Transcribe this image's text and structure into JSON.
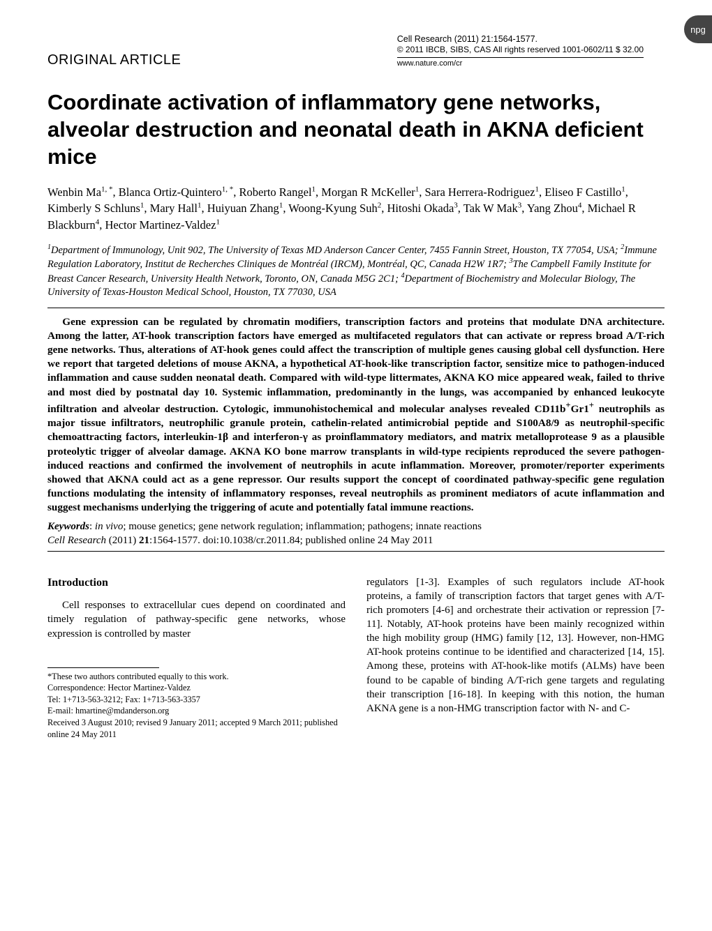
{
  "badge": "npg",
  "header": {
    "article_type": "ORIGINAL ARTICLE",
    "journal_line1": "Cell Research (2011) 21:1564-1577.",
    "journal_line2": "© 2011 IBCB, SIBS, CAS   All rights reserved 1001-0602/11  $ 32.00",
    "journal_url": "www.nature.com/cr"
  },
  "title": "Coordinate activation of inflammatory gene networks, alveolar destruction and neonatal death in AKNA deficient mice",
  "authors_html": "Wenbin Ma<sup>1, *</sup>, Blanca Ortiz-Quintero<sup>1, *</sup>, Roberto Rangel<sup>1</sup>, Morgan R McKeller<sup>1</sup>, Sara Herrera-Rodriguez<sup>1</sup>, Eliseo F Castillo<sup>1</sup>, Kimberly S Schluns<sup>1</sup>, Mary Hall<sup>1</sup>, Huiyuan Zhang<sup>1</sup>, Woong-Kyung Suh<sup>2</sup>, Hitoshi Okada<sup>3</sup>, Tak W Mak<sup>3</sup>, Yang Zhou<sup>4</sup>, Michael R Blackburn<sup>4</sup>, Hector Martinez-Valdez<sup>1</sup>",
  "affiliations_html": "<sup>1</sup>Department of Immunology, Unit 902, The University of Texas MD Anderson Cancer Center, 7455 Fannin Street, Houston, TX 77054, USA; <sup>2</sup>Immune Regulation Laboratory, Institut de Recherches Cliniques de Montréal (IRCM), Montréal, QC, Canada H2W 1R7; <sup>3</sup>The Campbell Family Institute for Breast Cancer Research, University Health Network, Toronto, ON, Canada M5G 2C1; <sup>4</sup>Department of Biochemistry and Molecular Biology, The University of Texas-Houston Medical School, Houston, TX 77030, USA",
  "abstract_html": "Gene expression can be regulated by chromatin modifiers, transcription factors and proteins that modulate DNA architecture. Among the latter, AT-hook transcription factors have emerged as multifaceted regulators that can activate or repress broad A/T-rich gene networks. Thus, alterations of AT-hook genes could affect the transcription of multiple genes causing global cell dysfunction. Here we report that targeted deletions of mouse AKNA, a hypothetical AT-hook-like transcription factor, sensitize mice to pathogen-induced inflammation and cause sudden neonatal death. Compared with wild-type littermates, AKNA KO mice appeared weak, failed to thrive and most died by postnatal day 10. Systemic inflammation, predominantly in the lungs, was accompanied by enhanced leukocyte infiltration and alveolar destruction. Cytologic, immunohistochemical and molecular analyses revealed CD11b<sup>+</sup>Gr1<sup>+</sup> neutrophils as major tissue infiltrators, neutrophilic granule protein, cathelin-related antimicrobial peptide and S100A8/9 as neutrophil-specific chemoattracting factors, interleukin-1β and interferon-γ as proinflammatory mediators, and matrix metalloprotease 9 as a plausible proteolytic trigger of alveolar damage. AKNA KO bone marrow transplants in wild-type recipients reproduced the severe pathogen-induced reactions and confirmed the involvement of neutrophils in acute inflammation. Moreover, promoter/reporter experiments showed that AKNA could act as a gene repressor. Our results support the concept of coordinated pathway-specific gene regulation functions modulating the intensity of inflammatory responses, reveal neutrophils as prominent mediators of acute inflammation and suggest mechanisms underlying the triggering of acute and potentially fatal immune reactions.",
  "keywords": {
    "label": "Keywords",
    "text": ": in vivo; mouse genetics; gene network regulation; inflammation; pathogens; innate reactions"
  },
  "citation_html": "<span class=\"journal\">Cell Research</span> (2011) <b>21</b>:1564-1577. doi:10.1038/cr.2011.84; published online 24 May 2011",
  "body": {
    "intro_heading": "Introduction",
    "left_para": "Cell responses to extracellular cues depend on coordinated and timely regulation of pathway-specific gene networks, whose expression is controlled by master",
    "right_para": "regulators [1-3]. Examples of such regulators include AT-hook proteins, a family of transcription factors that target genes with A/T-rich promoters [4-6] and orchestrate their activation or repression [7-11]. Notably, AT-hook proteins have been mainly recognized within the high mobility group (HMG) family [12, 13]. However, non-HMG AT-hook proteins continue to be identified and characterized [14, 15]. Among these, proteins with AT-hook-like motifs (ALMs) have been found to be capable of binding A/T-rich gene targets and regulating their transcription [16-18]. In keeping with this notion, the human AKNA gene is a non-HMG transcription factor with N- and C-"
  },
  "footnotes": {
    "equal": "*These two authors contributed equally to this work.",
    "correspondence": "Correspondence: Hector Martinez-Valdez",
    "tel": "Tel: 1+713-563-3212; Fax: 1+713-563-3357",
    "email": "E-mail: hmartine@mdanderson.org",
    "received": "Received 3 August 2010; revised 9 January 2011; accepted 9 March 2011; published online 24 May 2011"
  },
  "style": {
    "page_bg": "#ffffff",
    "text_color": "#000000",
    "title_font": "Arial",
    "title_size_pt": 23,
    "body_font": "Times New Roman",
    "body_size_pt": 11,
    "rule_color": "#000000"
  }
}
